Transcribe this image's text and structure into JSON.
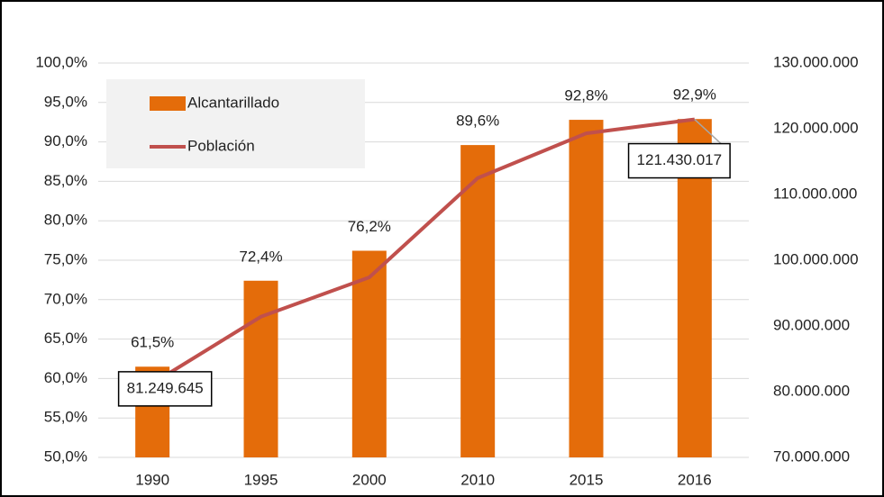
{
  "chart_data": {
    "type": "bar",
    "categories": [
      "1990",
      "1995",
      "2000",
      "2010",
      "2015",
      "2016"
    ],
    "series": [
      {
        "name": "Alcantarillado",
        "type": "bar",
        "color": "#e46c0a",
        "values": [
          61.5,
          72.4,
          76.2,
          89.6,
          92.8,
          92.9
        ],
        "value_labels": [
          "61,5%",
          "72,4%",
          "76,2%",
          "89,6%",
          "92,8%",
          "92,9%"
        ]
      },
      {
        "name": "Población",
        "type": "line",
        "axis": "y2",
        "color": "#c0504d",
        "values": [
          81249645,
          91400000,
          97400000,
          112500000,
          119300000,
          121430017
        ],
        "value_labels": [
          "81.249.645",
          null,
          null,
          null,
          null,
          "121.430.017"
        ]
      }
    ],
    "ylim": [
      50,
      100
    ],
    "yticks": [
      {
        "value": 50,
        "label": "50,0%"
      },
      {
        "value": 55,
        "label": "55,0%"
      },
      {
        "value": 60,
        "label": "60,0%"
      },
      {
        "value": 65,
        "label": "65,0%"
      },
      {
        "value": 70,
        "label": "70,0%"
      },
      {
        "value": 75,
        "label": "75,0%"
      },
      {
        "value": 80,
        "label": "80,0%"
      },
      {
        "value": 85,
        "label": "85,0%"
      },
      {
        "value": 90,
        "label": "90,0%"
      },
      {
        "value": 95,
        "label": "95,0%"
      },
      {
        "value": 100,
        "label": "100,0%"
      }
    ],
    "y2lim": [
      70000000,
      130000000
    ],
    "y2ticks": [
      {
        "value": 70000000,
        "label": "70.000.000"
      },
      {
        "value": 80000000,
        "label": "80.000.000"
      },
      {
        "value": 90000000,
        "label": "90.000.000"
      },
      {
        "value": 100000000,
        "label": "100.000.000"
      },
      {
        "value": 110000000,
        "label": "110.000.000"
      },
      {
        "value": 120000000,
        "label": "120.000.000"
      },
      {
        "value": 130000000,
        "label": "130.000.000"
      }
    ],
    "grid": true,
    "legend": "upper left"
  }
}
